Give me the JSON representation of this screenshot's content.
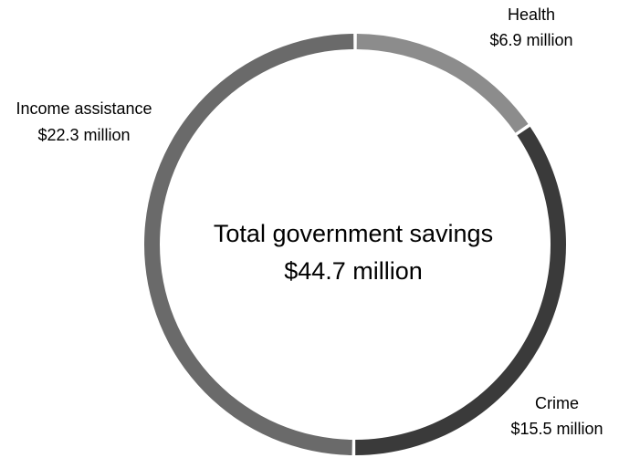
{
  "chart_data": {
    "type": "pie",
    "title": "",
    "center_label": {
      "line1": "Total government savings",
      "line2": "$44.7 million"
    },
    "slices": [
      {
        "name": "Health",
        "value": 6.9,
        "value_label": "$6.9 million",
        "color": "#8c8c8c"
      },
      {
        "name": "Crime",
        "value": 15.5,
        "value_label": "$15.5 million",
        "color": "#3a3a3a"
      },
      {
        "name": "Income assistance",
        "value": 22.3,
        "value_label": "$22.3 million",
        "color": "#6a6a6a"
      }
    ],
    "total": 44.7,
    "style": "donut",
    "legend": "none"
  }
}
